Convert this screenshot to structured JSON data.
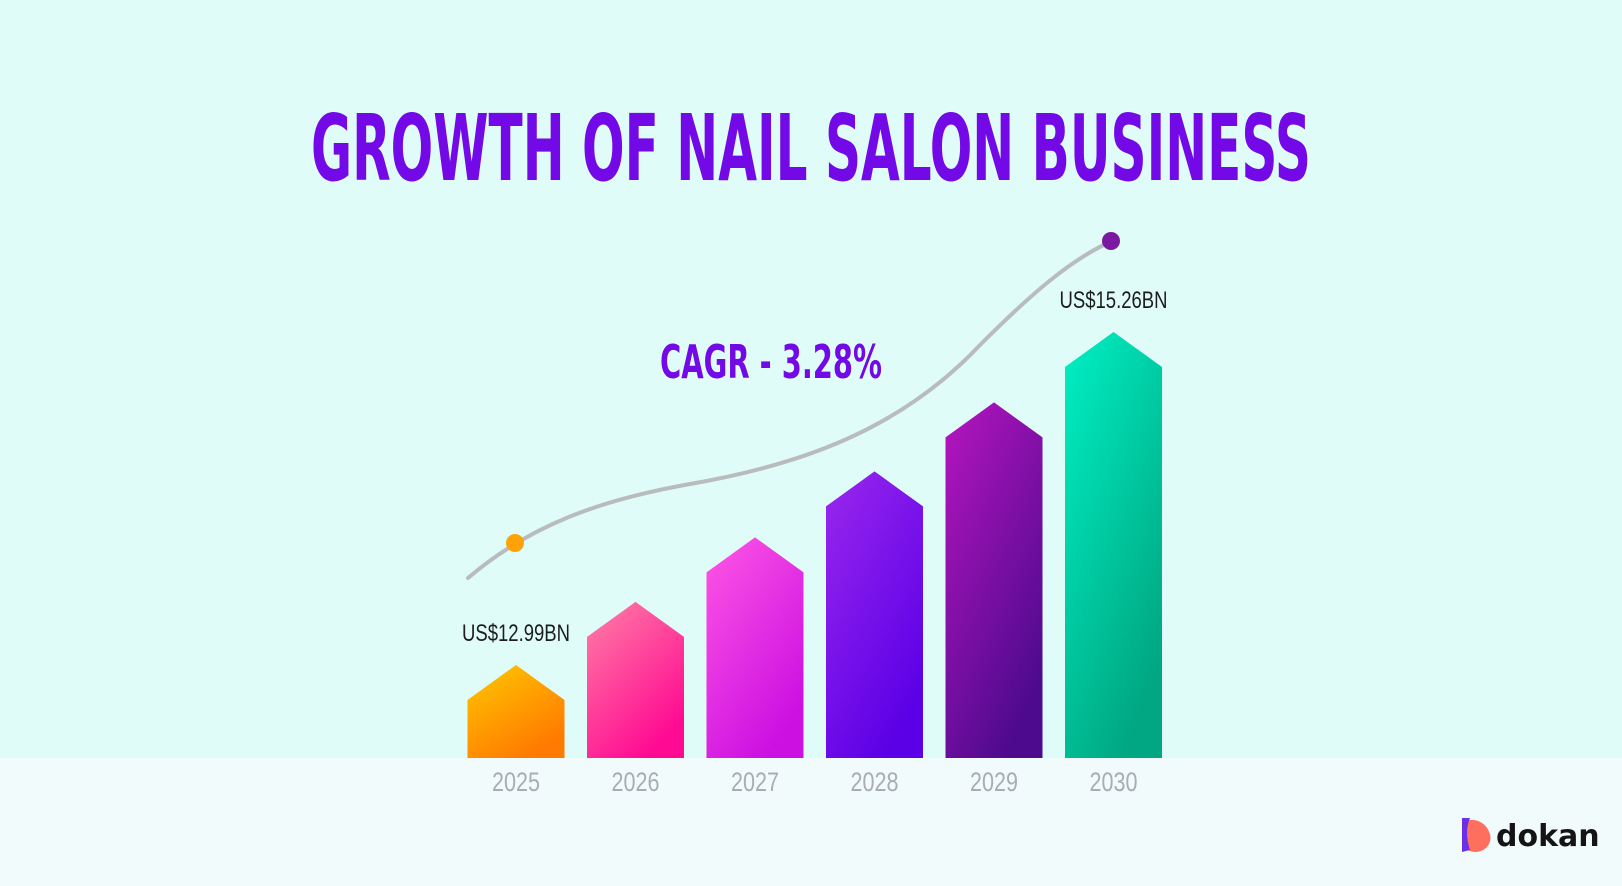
{
  "title": "GROWTH OF NAIL SALON BUSINESS",
  "cagr_label": "CAGR - 3.28%",
  "brand": {
    "name": "dokan"
  },
  "colors": {
    "background_top": "#e0fcf8",
    "background_bottom": "#f2fbfc",
    "title": "#7209e6",
    "trend_line": "#b9bcbd",
    "start_dot": "#ffa20a",
    "end_dot": "#7a1aa0"
  },
  "chart_data": {
    "type": "bar",
    "title": "GROWTH OF NAIL SALON BUSINESS",
    "xlabel": "",
    "ylabel": "",
    "categories": [
      "2025",
      "2026",
      "2027",
      "2028",
      "2029",
      "2030"
    ],
    "values": [
      12.99,
      13.42,
      13.86,
      14.31,
      14.78,
      15.26
    ],
    "unit": "US$ billion",
    "ylim": [
      12.4,
      15.26
    ],
    "grid": false,
    "legend": "none",
    "data_labels": [
      {
        "category": "2025",
        "text": "US$12.99BN"
      },
      {
        "category": "2030",
        "text": "US$15.26BN"
      }
    ],
    "annotation": "CAGR - 3.28%",
    "bar_colors": [
      {
        "top": "#ffc800",
        "bottom": "#ff7a00"
      },
      {
        "top": "#ff7fa6",
        "bottom": "#ff0a92"
      },
      {
        "top": "#ff56e4",
        "bottom": "#cc10e2"
      },
      {
        "top": "#9a27ee",
        "bottom": "#5b00e6"
      },
      {
        "top": "#b615bf",
        "bottom": "#4e0a8f"
      },
      {
        "top": "#00f0c4",
        "bottom": "#00a782"
      }
    ]
  }
}
